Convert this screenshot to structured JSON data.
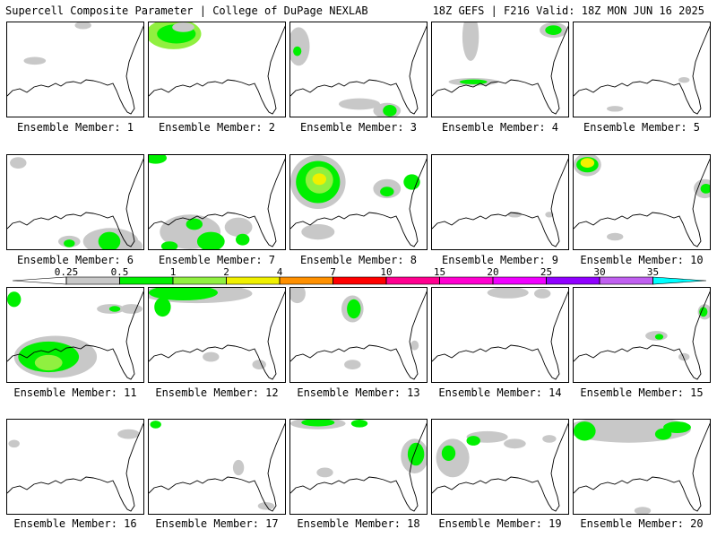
{
  "header": {
    "left": "Supercell Composite Parameter | College of DuPage NEXLAB",
    "right": "18Z GEFS | F216 Valid: 18Z MON JUN 16 2025"
  },
  "panel_label_prefix": "Ensemble Member:",
  "members": [
    {
      "id": "1",
      "blobs": [
        [
          0.55,
          0.03,
          0.06,
          0.04,
          0
        ],
        [
          0.2,
          0.4,
          0.08,
          0.04,
          0
        ]
      ]
    },
    {
      "id": "2",
      "blobs": [
        [
          0.18,
          0.12,
          0.2,
          0.16,
          2
        ],
        [
          0.2,
          0.12,
          0.14,
          0.1,
          1
        ],
        [
          0.25,
          0.05,
          0.08,
          0.05,
          0
        ]
      ]
    },
    {
      "id": "3",
      "blobs": [
        [
          0.06,
          0.25,
          0.08,
          0.2,
          0
        ],
        [
          0.05,
          0.3,
          0.03,
          0.05,
          1
        ],
        [
          0.7,
          0.92,
          0.1,
          0.08,
          0
        ],
        [
          0.72,
          0.92,
          0.05,
          0.06,
          1
        ],
        [
          0.5,
          0.85,
          0.15,
          0.06,
          0
        ]
      ]
    },
    {
      "id": "4",
      "blobs": [
        [
          0.28,
          0.15,
          0.06,
          0.25,
          0
        ],
        [
          0.88,
          0.08,
          0.1,
          0.08,
          0
        ],
        [
          0.88,
          0.08,
          0.06,
          0.05,
          1
        ],
        [
          0.3,
          0.62,
          0.18,
          0.04,
          0
        ],
        [
          0.3,
          0.62,
          0.1,
          0.025,
          1
        ]
      ]
    },
    {
      "id": "5",
      "blobs": [
        [
          0.8,
          0.6,
          0.04,
          0.03,
          0
        ],
        [
          0.3,
          0.9,
          0.06,
          0.03,
          0
        ]
      ]
    },
    {
      "id": "6",
      "blobs": [
        [
          0.08,
          0.08,
          0.06,
          0.06,
          0
        ],
        [
          0.75,
          0.9,
          0.2,
          0.14,
          0
        ],
        [
          0.74,
          0.9,
          0.08,
          0.1,
          1
        ],
        [
          0.45,
          0.9,
          0.08,
          0.06,
          0
        ],
        [
          0.45,
          0.92,
          0.04,
          0.04,
          1
        ],
        [
          0.9,
          0.95,
          0.08,
          0.08,
          0
        ]
      ]
    },
    {
      "id": "7",
      "blobs": [
        [
          0.05,
          0.03,
          0.08,
          0.06,
          1
        ],
        [
          0.3,
          0.8,
          0.22,
          0.18,
          0
        ],
        [
          0.45,
          0.9,
          0.1,
          0.1,
          1
        ],
        [
          0.33,
          0.72,
          0.06,
          0.06,
          1
        ],
        [
          0.65,
          0.75,
          0.1,
          0.1,
          0
        ],
        [
          0.68,
          0.88,
          0.05,
          0.06,
          1
        ],
        [
          0.15,
          0.95,
          0.06,
          0.05,
          1
        ]
      ]
    },
    {
      "id": "8",
      "blobs": [
        [
          0.2,
          0.28,
          0.2,
          0.28,
          0
        ],
        [
          0.2,
          0.28,
          0.16,
          0.22,
          1
        ],
        [
          0.21,
          0.26,
          0.1,
          0.14,
          2
        ],
        [
          0.21,
          0.25,
          0.05,
          0.06,
          3
        ],
        [
          0.7,
          0.35,
          0.1,
          0.1,
          0
        ],
        [
          0.7,
          0.38,
          0.05,
          0.05,
          1
        ],
        [
          0.88,
          0.28,
          0.06,
          0.08,
          1
        ],
        [
          0.2,
          0.8,
          0.12,
          0.08,
          0
        ]
      ]
    },
    {
      "id": "9",
      "blobs": [
        [
          0.6,
          0.62,
          0.05,
          0.03,
          0
        ],
        [
          0.85,
          0.62,
          0.03,
          0.03,
          0
        ]
      ]
    },
    {
      "id": "10",
      "blobs": [
        [
          0.1,
          0.1,
          0.1,
          0.12,
          0
        ],
        [
          0.1,
          0.1,
          0.08,
          0.08,
          1
        ],
        [
          0.1,
          0.08,
          0.05,
          0.05,
          3
        ],
        [
          0.95,
          0.35,
          0.08,
          0.1,
          0
        ],
        [
          0.96,
          0.35,
          0.04,
          0.05,
          1
        ],
        [
          0.3,
          0.85,
          0.06,
          0.04,
          0
        ]
      ]
    },
    {
      "id": "11",
      "blobs": [
        [
          0.05,
          0.12,
          0.05,
          0.08,
          1
        ],
        [
          0.75,
          0.22,
          0.1,
          0.05,
          0
        ],
        [
          0.78,
          0.22,
          0.04,
          0.03,
          1
        ],
        [
          0.35,
          0.72,
          0.3,
          0.22,
          0
        ],
        [
          0.3,
          0.72,
          0.22,
          0.16,
          1
        ],
        [
          0.3,
          0.78,
          0.1,
          0.08,
          2
        ],
        [
          0.9,
          0.22,
          0.08,
          0.05,
          0
        ]
      ]
    },
    {
      "id": "12",
      "blobs": [
        [
          0.35,
          0.06,
          0.4,
          0.1,
          0
        ],
        [
          0.25,
          0.05,
          0.25,
          0.08,
          1
        ],
        [
          0.1,
          0.2,
          0.06,
          0.1,
          1
        ],
        [
          0.45,
          0.72,
          0.06,
          0.05,
          0
        ],
        [
          0.8,
          0.8,
          0.05,
          0.05,
          0
        ]
      ]
    },
    {
      "id": "13",
      "blobs": [
        [
          0.05,
          0.06,
          0.06,
          0.1,
          0
        ],
        [
          0.45,
          0.22,
          0.08,
          0.14,
          0
        ],
        [
          0.46,
          0.22,
          0.05,
          0.1,
          1
        ],
        [
          0.45,
          0.8,
          0.06,
          0.05,
          0
        ],
        [
          0.9,
          0.6,
          0.03,
          0.05,
          0
        ]
      ]
    },
    {
      "id": "14",
      "blobs": [
        [
          0.55,
          0.05,
          0.15,
          0.06,
          0
        ],
        [
          0.8,
          0.06,
          0.06,
          0.05,
          0
        ]
      ]
    },
    {
      "id": "15",
      "blobs": [
        [
          0.95,
          0.25,
          0.05,
          0.08,
          0
        ],
        [
          0.94,
          0.25,
          0.03,
          0.05,
          1
        ],
        [
          0.6,
          0.5,
          0.08,
          0.05,
          0
        ],
        [
          0.62,
          0.51,
          0.03,
          0.03,
          1
        ],
        [
          0.8,
          0.72,
          0.04,
          0.04,
          0
        ]
      ]
    },
    {
      "id": "16",
      "blobs": [
        [
          0.88,
          0.15,
          0.08,
          0.05,
          0
        ],
        [
          0.05,
          0.25,
          0.04,
          0.04,
          0
        ]
      ]
    },
    {
      "id": "17",
      "blobs": [
        [
          0.05,
          0.05,
          0.04,
          0.04,
          1
        ],
        [
          0.65,
          0.5,
          0.04,
          0.08,
          0
        ],
        [
          0.85,
          0.9,
          0.06,
          0.04,
          0
        ]
      ]
    },
    {
      "id": "18",
      "blobs": [
        [
          0.2,
          0.04,
          0.2,
          0.06,
          0
        ],
        [
          0.2,
          0.03,
          0.12,
          0.04,
          1
        ],
        [
          0.5,
          0.04,
          0.06,
          0.04,
          1
        ],
        [
          0.9,
          0.38,
          0.1,
          0.18,
          0
        ],
        [
          0.91,
          0.36,
          0.06,
          0.12,
          1
        ],
        [
          0.25,
          0.55,
          0.06,
          0.05,
          0
        ]
      ]
    },
    {
      "id": "19",
      "blobs": [
        [
          0.15,
          0.4,
          0.12,
          0.2,
          0
        ],
        [
          0.12,
          0.35,
          0.05,
          0.08,
          1
        ],
        [
          0.4,
          0.18,
          0.15,
          0.06,
          0
        ],
        [
          0.3,
          0.22,
          0.05,
          0.05,
          1
        ],
        [
          0.6,
          0.25,
          0.08,
          0.05,
          0
        ],
        [
          0.85,
          0.2,
          0.05,
          0.04,
          0
        ]
      ]
    },
    {
      "id": "20",
      "blobs": [
        [
          0.4,
          0.1,
          0.45,
          0.14,
          0
        ],
        [
          0.08,
          0.12,
          0.08,
          0.1,
          1
        ],
        [
          0.75,
          0.08,
          0.1,
          0.06,
          1
        ],
        [
          0.65,
          0.15,
          0.06,
          0.06,
          1
        ],
        [
          0.5,
          0.95,
          0.06,
          0.04,
          0
        ]
      ]
    }
  ],
  "legend": {
    "ticks": [
      "0.25",
      "0.5",
      "1",
      "2",
      "4",
      "7",
      "10",
      "15",
      "20",
      "25",
      "30",
      "35"
    ],
    "colors": [
      "#c8c8c8",
      "#00f000",
      "#90f040",
      "#f0f000",
      "#ff9000",
      "#ff0000",
      "#ff0090",
      "#ff00d0",
      "#f000ff",
      "#9000ff",
      "#c060f0",
      "#00ffff"
    ]
  }
}
